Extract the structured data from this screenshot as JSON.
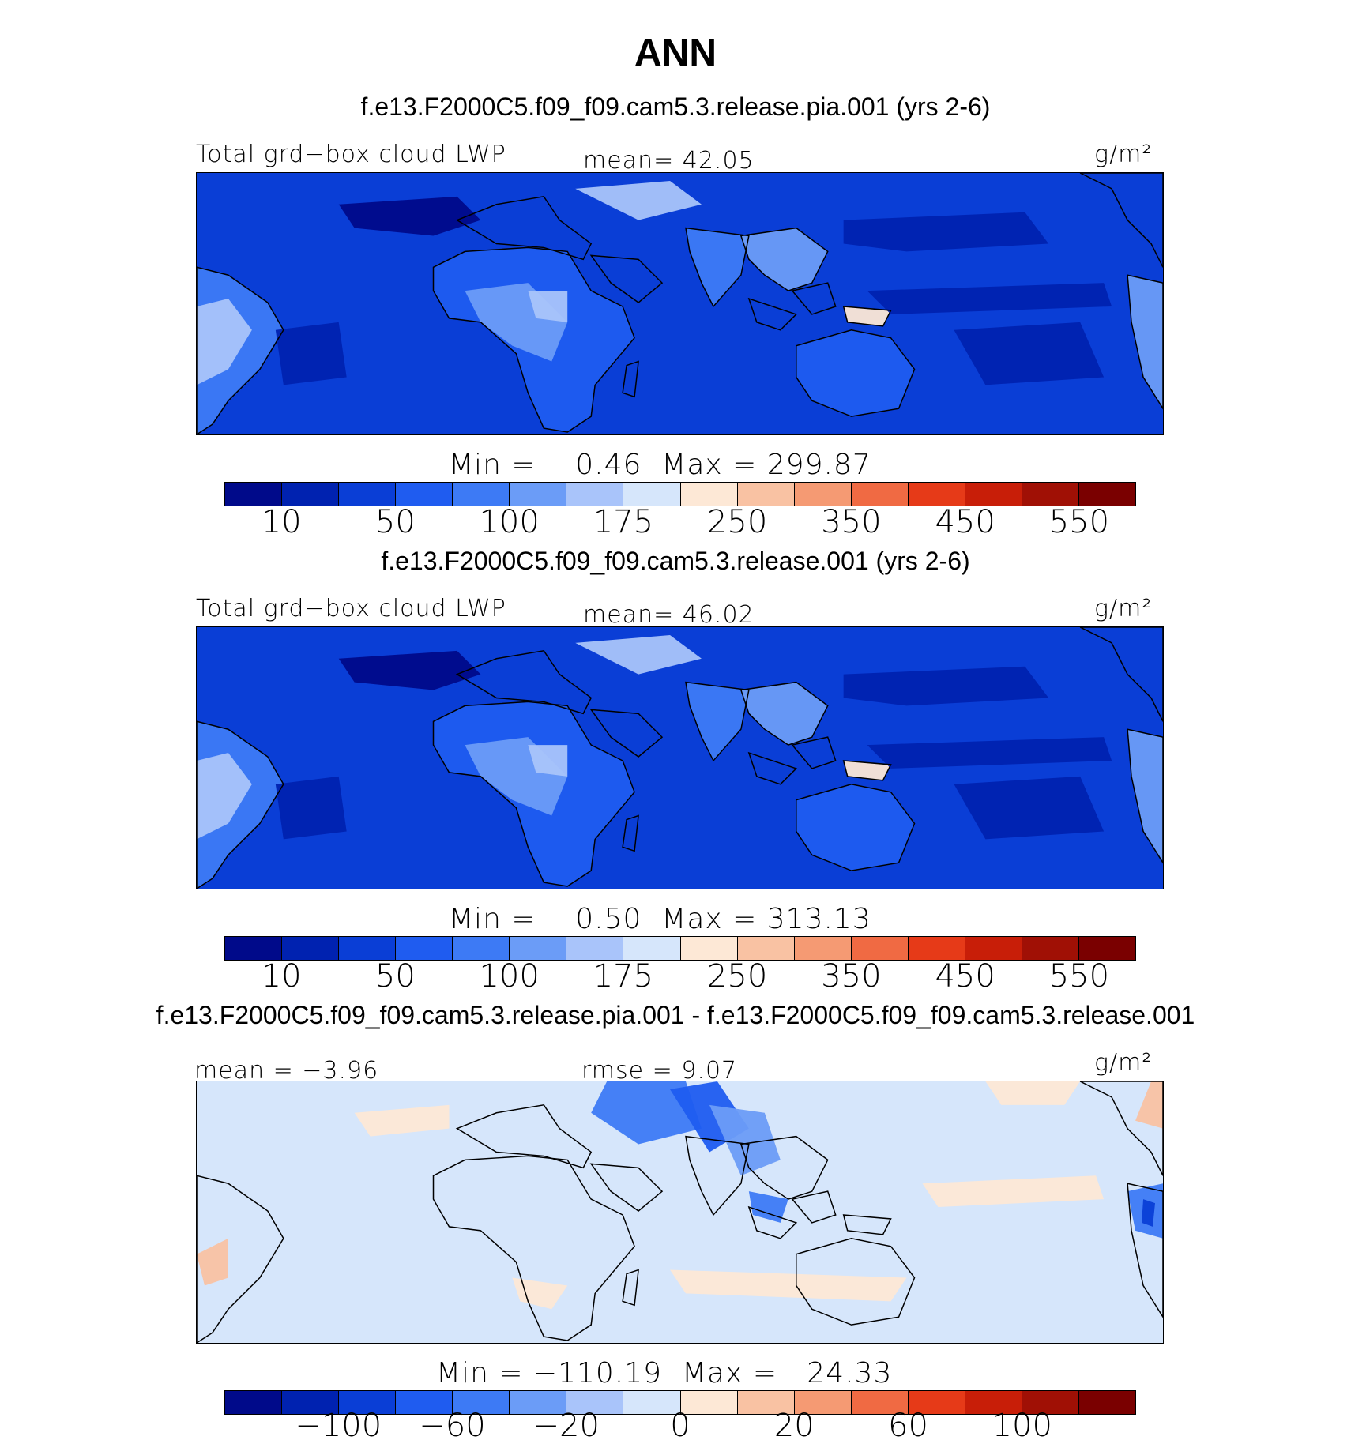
{
  "title": "ANN",
  "palette": [
    "#000a8a",
    "#0022b0",
    "#0a3ed6",
    "#1f5cf0",
    "#3d7af5",
    "#6b9cf7",
    "#a9c4fa",
    "#d6e6fb",
    "#fde8d6",
    "#f9c2a3",
    "#f59a73",
    "#f06a43",
    "#e63a18",
    "#c81e08",
    "#a01005",
    "#7a0000"
  ],
  "land_color": "none",
  "coast_color": "#000000",
  "panels": [
    {
      "case": "f.e13.F2000C5.f09_f09.cam5.3.release.pia.001 (yrs 2-6)",
      "left_label": "Total grd−box cloud LWP",
      "center_label": "mean=  42.05",
      "units": "g/m²",
      "stats": "Min =    0.46  Max = 299.87",
      "ticks": [
        "10",
        "50",
        "100",
        "175",
        "250",
        "350",
        "450",
        "550"
      ],
      "field": {
        "base": "#0a3ed6",
        "kind": "abs"
      }
    },
    {
      "case": "f.e13.F2000C5.f09_f09.cam5.3.release.001 (yrs 2-6)",
      "left_label": "Total grd−box cloud LWP",
      "center_label": "mean=  46.02",
      "units": "g/m²",
      "stats": "Min =    0.50  Max = 313.13",
      "ticks": [
        "10",
        "50",
        "100",
        "175",
        "250",
        "350",
        "450",
        "550"
      ],
      "field": {
        "base": "#0a3ed6",
        "kind": "abs"
      }
    },
    {
      "case": "f.e13.F2000C5.f09_f09.cam5.3.release.pia.001 - f.e13.F2000C5.f09_f09.cam5.3.release.001",
      "left_label": "mean =  −3.96",
      "center_label": "rmse =   9.07",
      "units": "g/m²",
      "stats": "Min = −110.19  Max =   24.33",
      "ticks": [
        "−100",
        "−60",
        "−20",
        "0",
        "20",
        "60",
        "100"
      ],
      "field": {
        "base": "#d6e6fb",
        "kind": "diff"
      }
    }
  ]
}
